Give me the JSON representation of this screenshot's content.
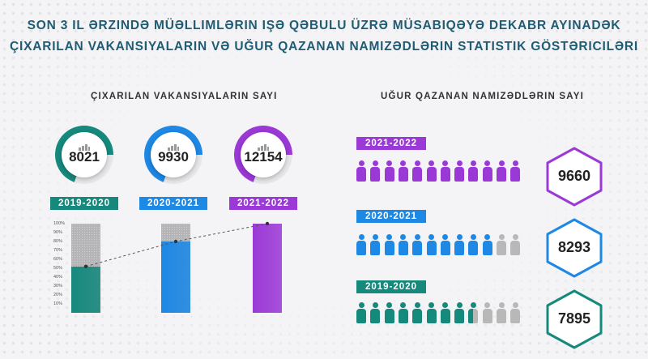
{
  "title": {
    "line1": "Son 3 il ərzində müəllimlərin işə qəbulu üzrə müsabiqəyə dekabr ayınadək",
    "line2": "çıxarılan vakansiyaların və uğur qazanan namizədlərin statistik göstəriciləri"
  },
  "left_section": {
    "title": "Çıxarılan vakansiyaların sayı",
    "y_ticks": [
      "100%",
      "90%",
      "80%",
      "70%",
      "60%",
      "50%",
      "40%",
      "30%",
      "20%",
      "10%"
    ]
  },
  "right_section": {
    "title": "Uğur qazanan namizədlərin sayı"
  },
  "colors": {
    "teal": "#16897d",
    "blue": "#1e88e5",
    "purple": "#9b39d6",
    "gray": "#b8b8b8",
    "title": "#1f5c73"
  },
  "chart_data": [
    {
      "type": "bar",
      "title": "Çıxarılan vakansiyaların sayı",
      "categories": [
        "2019-2020",
        "2020-2021",
        "2021-2022"
      ],
      "values": [
        8021,
        9930,
        12154
      ],
      "percent_fill": [
        52,
        80,
        100
      ],
      "ylim": [
        0,
        100
      ],
      "y_unit": "%",
      "trend_line": true
    },
    {
      "type": "bar",
      "title": "Uğur qazanan namizədlərin sayı",
      "categories": [
        "2021-2022",
        "2020-2021",
        "2019-2020"
      ],
      "values": [
        9660,
        8293,
        7895
      ],
      "icons_total": 12,
      "icons_filled": [
        12,
        10,
        8.5
      ]
    }
  ]
}
